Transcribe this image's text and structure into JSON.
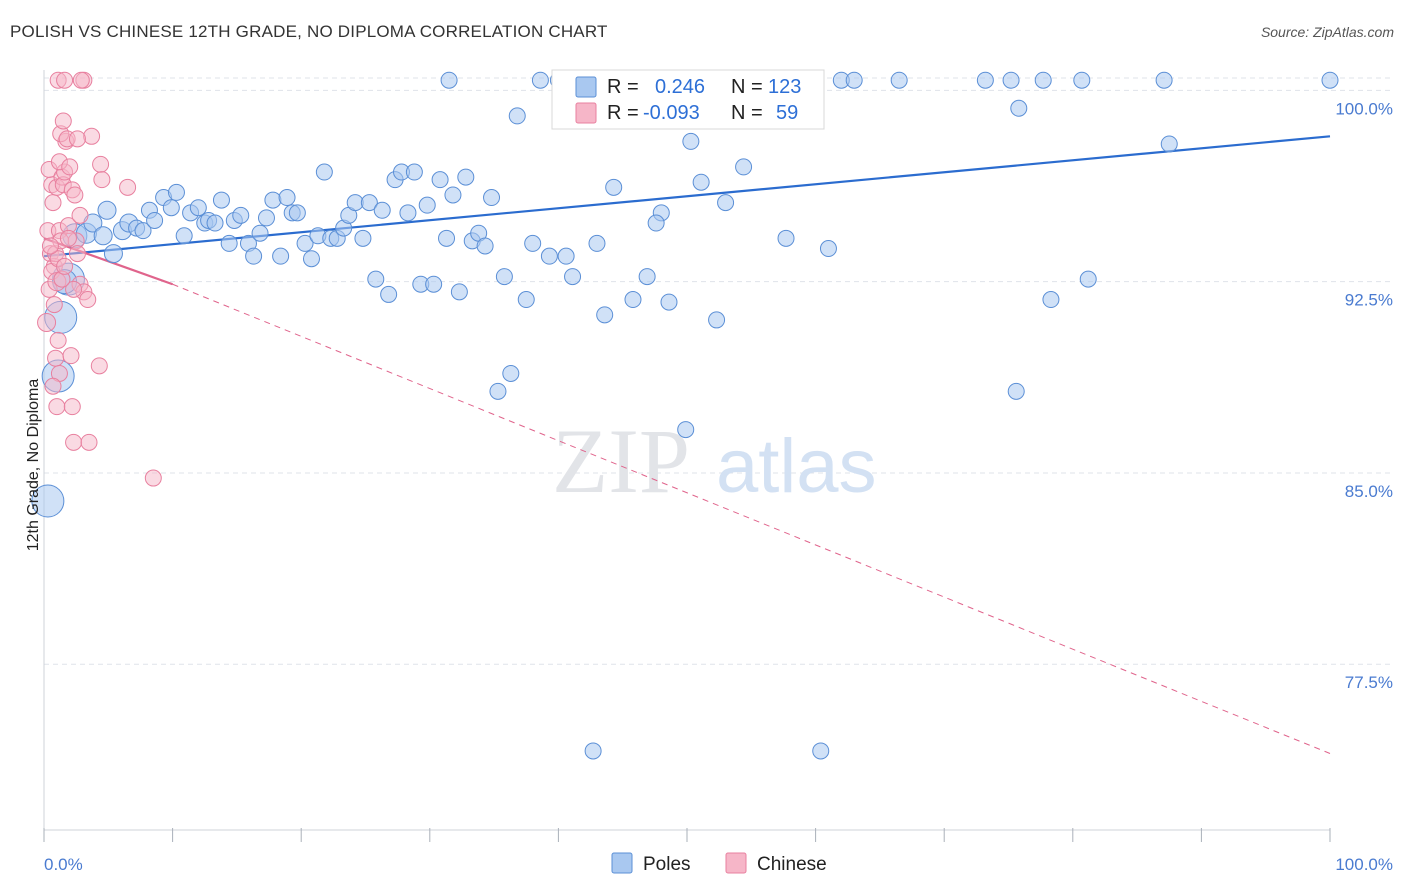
{
  "title": "POLISH VS CHINESE 12TH GRADE, NO DIPLOMA CORRELATION CHART",
  "source": "Source: ZipAtlas.com",
  "watermark": {
    "zip": "ZIP",
    "atlas": "atlas"
  },
  "colors": {
    "poles_fill": "#a9c8f0",
    "poles_stroke": "#5b8fd6",
    "poles_line": "#2b6ccf",
    "chinese_fill": "#f6b6c8",
    "chinese_stroke": "#e8809f",
    "chinese_line": "#e0648c",
    "grid": "#dfe3ea",
    "tick_text": "#4a7bd0"
  },
  "legend": {
    "poles": {
      "r_label": "R =",
      "r_value": "0.246",
      "n_label": "N =",
      "n_value": "123"
    },
    "chinese": {
      "r_label": "R =",
      "r_value": "-0.093",
      "n_label": "N =",
      "n_value": "59"
    }
  },
  "chart_data": {
    "type": "scatter",
    "title": "POLISH VS CHINESE 12TH GRADE, NO DIPLOMA CORRELATION CHART",
    "xlabel": "",
    "ylabel": "12th Grade, No Diploma",
    "xlim": [
      0,
      100
    ],
    "ylim": [
      71,
      100.8
    ],
    "x_tick_labels": [
      "0.0%",
      "100.0%"
    ],
    "y_ticks": [
      77.5,
      85.0,
      92.5,
      100.0
    ],
    "y_tick_labels": [
      "77.5%",
      "85.0%",
      "92.5%",
      "100.0%"
    ],
    "grid": true,
    "legend_position": "top-center and bottom",
    "series": [
      {
        "name": "Poles",
        "trend": {
          "x": [
            0,
            100
          ],
          "y": [
            93.5,
            98.2
          ]
        },
        "points": [
          [
            0.3,
            83.9,
            16
          ],
          [
            1.1,
            88.8,
            16
          ],
          [
            1.3,
            91.1,
            16
          ],
          [
            1.9,
            92.6,
            16
          ],
          [
            1.6,
            92.5,
            12
          ],
          [
            2.4,
            94.3,
            12
          ],
          [
            3.3,
            94.4,
            10
          ],
          [
            3.8,
            94.8,
            9
          ],
          [
            4.6,
            94.3,
            9
          ],
          [
            4.9,
            95.3,
            9
          ],
          [
            5.4,
            93.6,
            9
          ],
          [
            6.1,
            94.5,
            9
          ],
          [
            6.6,
            94.8,
            9
          ],
          [
            7.2,
            94.6,
            8
          ],
          [
            7.7,
            94.5,
            8
          ],
          [
            8.2,
            95.3,
            8
          ],
          [
            8.6,
            94.9,
            8
          ],
          [
            9.3,
            95.8,
            8
          ],
          [
            9.9,
            95.4,
            8
          ],
          [
            10.3,
            96.0,
            8
          ],
          [
            10.9,
            94.3,
            8
          ],
          [
            11.4,
            95.2,
            8
          ],
          [
            12.0,
            95.4,
            8
          ],
          [
            12.5,
            94.8,
            8
          ],
          [
            12.8,
            94.9,
            8
          ],
          [
            13.3,
            94.8,
            8
          ],
          [
            13.8,
            95.7,
            8
          ],
          [
            14.4,
            94.0,
            8
          ],
          [
            14.8,
            94.9,
            8
          ],
          [
            15.3,
            95.1,
            8
          ],
          [
            15.9,
            94.0,
            8
          ],
          [
            16.3,
            93.5,
            8
          ],
          [
            16.8,
            94.4,
            8
          ],
          [
            17.3,
            95.0,
            8
          ],
          [
            17.8,
            95.7,
            8
          ],
          [
            18.4,
            93.5,
            8
          ],
          [
            18.9,
            95.8,
            8
          ],
          [
            19.3,
            95.2,
            8
          ],
          [
            19.7,
            95.2,
            8
          ],
          [
            20.3,
            94.0,
            8
          ],
          [
            20.8,
            93.4,
            8
          ],
          [
            21.3,
            94.3,
            8
          ],
          [
            21.8,
            96.8,
            8
          ],
          [
            22.3,
            94.2,
            8
          ],
          [
            22.8,
            94.2,
            8
          ],
          [
            23.3,
            94.6,
            8
          ],
          [
            23.7,
            95.1,
            8
          ],
          [
            24.2,
            95.6,
            8
          ],
          [
            24.8,
            94.2,
            8
          ],
          [
            25.3,
            95.6,
            8
          ],
          [
            25.8,
            92.6,
            8
          ],
          [
            26.3,
            95.3,
            8
          ],
          [
            26.8,
            92.0,
            8
          ],
          [
            27.3,
            96.5,
            8
          ],
          [
            27.8,
            96.8,
            8
          ],
          [
            28.3,
            95.2,
            8
          ],
          [
            28.8,
            96.8,
            8
          ],
          [
            29.3,
            92.4,
            8
          ],
          [
            29.8,
            95.5,
            8
          ],
          [
            30.3,
            92.4,
            8
          ],
          [
            30.8,
            96.5,
            8
          ],
          [
            31.3,
            94.2,
            8
          ],
          [
            31.8,
            95.9,
            8
          ],
          [
            32.3,
            92.1,
            8
          ],
          [
            32.8,
            96.6,
            8
          ],
          [
            33.3,
            94.1,
            8
          ],
          [
            33.8,
            94.4,
            8
          ],
          [
            34.3,
            93.9,
            8
          ],
          [
            34.8,
            95.8,
            8
          ],
          [
            35.3,
            88.2,
            8
          ],
          [
            35.8,
            92.7,
            8
          ],
          [
            36.3,
            88.9,
            8
          ],
          [
            36.8,
            99.0,
            8
          ],
          [
            37.5,
            91.8,
            8
          ],
          [
            38.0,
            94.0,
            8
          ],
          [
            38.6,
            100.4,
            8
          ],
          [
            39.3,
            93.5,
            8
          ],
          [
            40.0,
            100.4,
            8
          ],
          [
            40.6,
            93.5,
            8
          ],
          [
            41.1,
            92.7,
            8
          ],
          [
            41.8,
            98.9,
            8
          ],
          [
            42.4,
            100.4,
            8
          ],
          [
            43.0,
            94.0,
            8
          ],
          [
            43.6,
            91.2,
            8
          ],
          [
            42.7,
            74.1,
            8
          ],
          [
            44.3,
            96.2,
            8
          ],
          [
            45.1,
            100.4,
            8
          ],
          [
            45.8,
            91.8,
            8
          ],
          [
            46.6,
            98.8,
            8
          ],
          [
            47.4,
            100.4,
            8
          ],
          [
            46.9,
            92.7,
            8
          ],
          [
            48.0,
            95.2,
            8
          ],
          [
            47.6,
            94.8,
            8
          ],
          [
            48.6,
            91.7,
            8
          ],
          [
            49.5,
            100.4,
            8
          ],
          [
            49.9,
            86.7,
            8
          ],
          [
            50.3,
            98.0,
            8
          ],
          [
            51.1,
            96.4,
            8
          ],
          [
            52.1,
            100.4,
            8
          ],
          [
            52.3,
            91.0,
            8
          ],
          [
            53.0,
            95.6,
            8
          ],
          [
            53.8,
            100.4,
            8
          ],
          [
            54.4,
            97.0,
            8
          ],
          [
            55.1,
            100.4,
            8
          ],
          [
            57.7,
            94.2,
            8
          ],
          [
            60.4,
            74.1,
            8
          ],
          [
            61.0,
            93.8,
            8
          ],
          [
            62.0,
            100.4,
            8
          ],
          [
            63.0,
            100.4,
            8
          ],
          [
            66.5,
            100.4,
            8
          ],
          [
            73.2,
            100.4,
            8
          ],
          [
            75.2,
            100.4,
            8
          ],
          [
            75.6,
            88.2,
            8
          ],
          [
            75.8,
            99.3,
            8
          ],
          [
            77.7,
            100.4,
            8
          ],
          [
            78.3,
            91.8,
            8
          ],
          [
            80.7,
            100.4,
            8
          ],
          [
            81.2,
            92.6,
            8
          ],
          [
            87.1,
            100.4,
            8
          ],
          [
            87.5,
            97.9,
            8
          ],
          [
            100.0,
            100.4,
            8
          ],
          [
            31.5,
            100.4,
            8
          ],
          [
            44.9,
            99.0,
            8
          ]
        ]
      },
      {
        "name": "Chinese",
        "trend": {
          "x": [
            0,
            10.0,
            100
          ],
          "y": [
            94.2,
            92.4,
            74.0
          ]
        },
        "points": [
          [
            0.2,
            90.9,
            9
          ],
          [
            0.4,
            92.2,
            8
          ],
          [
            0.5,
            93.6,
            8
          ],
          [
            0.3,
            94.5,
            8
          ],
          [
            0.6,
            96.3,
            8
          ],
          [
            0.7,
            95.6,
            8
          ],
          [
            0.4,
            96.9,
            8
          ],
          [
            0.8,
            93.1,
            8
          ],
          [
            0.9,
            93.6,
            8
          ],
          [
            0.6,
            92.9,
            8
          ],
          [
            1.0,
            92.5,
            9
          ],
          [
            1.1,
            93.4,
            8
          ],
          [
            1.2,
            94.5,
            8
          ],
          [
            1.3,
            94.1,
            8
          ],
          [
            1.0,
            96.2,
            8
          ],
          [
            1.4,
            96.6,
            8
          ],
          [
            1.5,
            96.3,
            8
          ],
          [
            1.6,
            96.8,
            8
          ],
          [
            1.2,
            97.2,
            8
          ],
          [
            1.7,
            98.0,
            8
          ],
          [
            1.3,
            98.3,
            8
          ],
          [
            1.5,
            98.8,
            8
          ],
          [
            1.8,
            98.1,
            8
          ],
          [
            2.0,
            97.0,
            8
          ],
          [
            2.2,
            96.1,
            8
          ],
          [
            2.4,
            95.9,
            8
          ],
          [
            1.9,
            94.7,
            8
          ],
          [
            2.5,
            94.1,
            8
          ],
          [
            2.6,
            93.6,
            8
          ],
          [
            2.8,
            92.4,
            8
          ],
          [
            3.1,
            92.1,
            8
          ],
          [
            3.4,
            91.8,
            8
          ],
          [
            2.3,
            92.2,
            8
          ],
          [
            1.4,
            92.6,
            8
          ],
          [
            0.8,
            91.6,
            8
          ],
          [
            1.1,
            90.2,
            8
          ],
          [
            0.9,
            89.5,
            8
          ],
          [
            1.2,
            88.9,
            8
          ],
          [
            0.7,
            88.4,
            8
          ],
          [
            1.0,
            87.6,
            8
          ],
          [
            2.1,
            89.6,
            8
          ],
          [
            2.2,
            87.6,
            8
          ],
          [
            4.3,
            89.2,
            8
          ],
          [
            2.3,
            86.2,
            8
          ],
          [
            3.5,
            86.2,
            8
          ],
          [
            8.5,
            84.8,
            8
          ],
          [
            1.1,
            100.4,
            8
          ],
          [
            3.1,
            100.4,
            8
          ],
          [
            1.6,
            100.4,
            8
          ],
          [
            2.9,
            100.4,
            8
          ],
          [
            3.7,
            98.2,
            8
          ],
          [
            2.6,
            98.1,
            8
          ],
          [
            4.4,
            97.1,
            8
          ],
          [
            6.5,
            96.2,
            8
          ],
          [
            4.5,
            96.5,
            8
          ],
          [
            2.8,
            95.1,
            8
          ],
          [
            1.9,
            94.2,
            8
          ],
          [
            0.5,
            93.9,
            8
          ],
          [
            1.6,
            93.1,
            8
          ]
        ]
      }
    ]
  },
  "bottom_legend": [
    "Poles",
    "Chinese"
  ]
}
